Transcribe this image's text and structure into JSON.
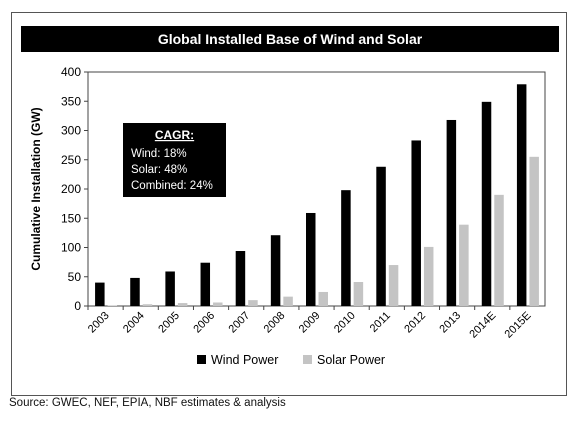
{
  "source_note": "Source: GWEC, NEF, EPIA, NBF estimates & analysis",
  "colors": {
    "wind": "#000000",
    "solar": "#c4c4c4",
    "background": "#ffffff"
  },
  "chart_data": {
    "type": "bar",
    "title": "Global Installed Base of Wind and Solar",
    "xlabel": "",
    "ylabel": "Cumulative Installation (GW)",
    "ylim": [
      0,
      400
    ],
    "yticks": [
      0,
      50,
      100,
      150,
      200,
      250,
      300,
      350,
      400
    ],
    "grid": false,
    "legend_position": "bottom",
    "categories": [
      "2003",
      "2004",
      "2005",
      "2006",
      "2007",
      "2008",
      "2009",
      "2010",
      "2011",
      "2012",
      "2013",
      "2014E",
      "2015E"
    ],
    "series": [
      {
        "name": "Wind Power",
        "color": "#000000",
        "values": [
          40,
          48,
          59,
          74,
          94,
          121,
          159,
          198,
          238,
          283,
          318,
          349,
          379
        ]
      },
      {
        "name": "Solar Power",
        "color": "#c4c4c4",
        "values": [
          1,
          3,
          5,
          6,
          10,
          16,
          24,
          41,
          70,
          101,
          139,
          190,
          255
        ]
      }
    ],
    "annotation": {
      "title": "CAGR:",
      "lines": [
        "Wind: 18%",
        "Solar: 48%",
        "Combined: 24%"
      ]
    }
  }
}
